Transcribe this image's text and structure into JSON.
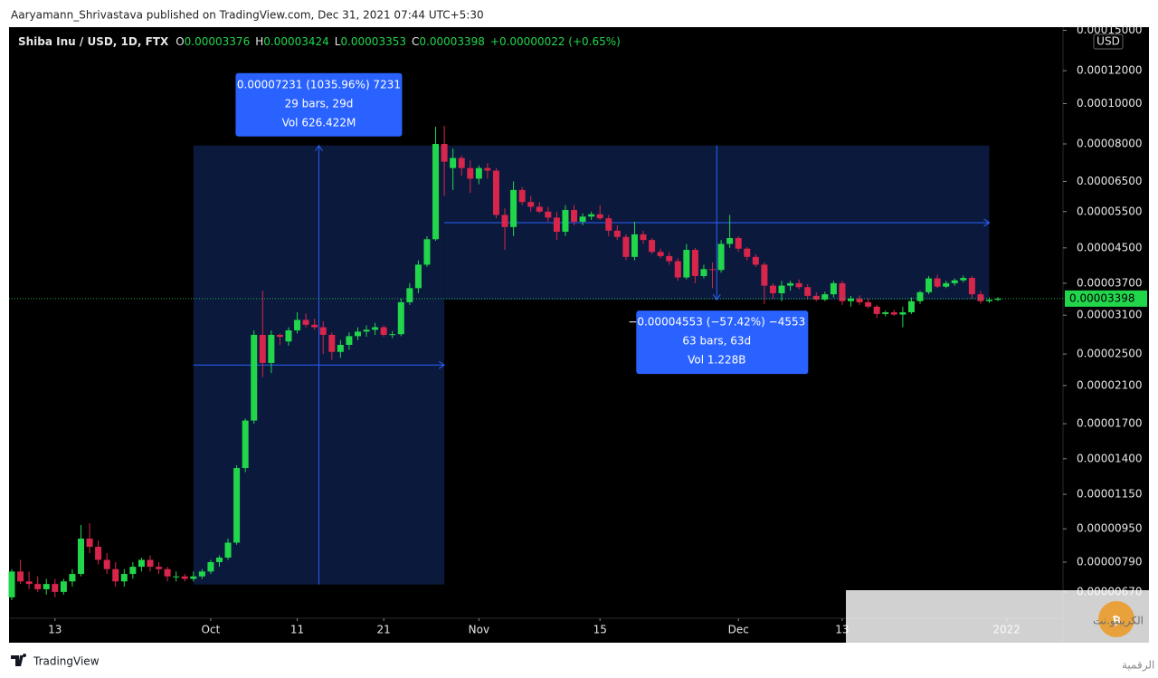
{
  "published": "Aaryamann_Shrivastava published on TradingView.com, Dec 31, 2021 07:44 UTC+5:30",
  "footer": "TradingView",
  "watermark": {
    "title": "الكريبتو.نت",
    "subtitle": "أخبار العملات الرقمية"
  },
  "chart_data": {
    "type": "candlestick",
    "title": "Shiba Inu / USD, 1D, FTX",
    "ohlc_legend": [
      {
        "key": "O",
        "value": "0.00003376"
      },
      {
        "key": "H",
        "value": "0.00003424"
      },
      {
        "key": "L",
        "value": "0.00003353"
      },
      {
        "key": "C",
        "value": "0.00003398"
      }
    ],
    "change_label": "+0.00000022 (+0.65%)",
    "y_unit": "USD",
    "up_color": "#22d64c",
    "down_color": "#d8254c",
    "log_scale": true,
    "grid": false,
    "last_price": {
      "value": 3.398e-05,
      "label": "0.00003398"
    },
    "xlim": [
      "2021-09-08",
      "2022-01-07"
    ],
    "xticks": [
      {
        "value": "2021-09-13",
        "label": "13"
      },
      {
        "value": "2021-10-01",
        "label": "Oct"
      },
      {
        "value": "2021-10-11",
        "label": "11"
      },
      {
        "value": "2021-10-21",
        "label": "21"
      },
      {
        "value": "2021-11-01",
        "label": "Nov"
      },
      {
        "value": "2021-11-15",
        "label": "15"
      },
      {
        "value": "2021-12-01",
        "label": "Dec"
      },
      {
        "value": "2021-12-13",
        "label": "13"
      },
      {
        "value": "2022-01-01",
        "label": "2022"
      }
    ],
    "ylim": [
      5.79e-06,
      0.0001527
    ],
    "yticks": [
      {
        "value": 0.00015,
        "label": "0.00015000"
      },
      {
        "value": 0.00012,
        "label": "0.00012000"
      },
      {
        "value": 0.0001,
        "label": "0.00010000"
      },
      {
        "value": 8e-05,
        "label": "0.00008000"
      },
      {
        "value": 6.5e-05,
        "label": "0.00006500"
      },
      {
        "value": 5.5e-05,
        "label": "0.00005500"
      },
      {
        "value": 4.5e-05,
        "label": "0.00004500"
      },
      {
        "value": 3.7e-05,
        "label": "0.00003700"
      },
      {
        "value": 3.1e-05,
        "label": "0.00003100"
      },
      {
        "value": 2.5e-05,
        "label": "0.00002500"
      },
      {
        "value": 2.1e-05,
        "label": "0.00002100"
      },
      {
        "value": 1.7e-05,
        "label": "0.00001700"
      },
      {
        "value": 1.4e-05,
        "label": "0.00001400"
      },
      {
        "value": 1.15e-05,
        "label": "0.00001150"
      },
      {
        "value": 9.5e-06,
        "label": "0.00000950"
      },
      {
        "value": 7.9e-06,
        "label": "0.00000790"
      },
      {
        "value": 6.7e-06,
        "label": "0.00000670"
      }
    ],
    "measurements": [
      {
        "x": [
          "2021-09-29",
          "2021-10-28"
        ],
        "y": [
          6.98e-06,
          7.929e-05
        ],
        "direction": "up",
        "lines": [
          "0.00007231 (1035.96%) 7231",
          "29 bars, 29d",
          "Vol 626.422M"
        ]
      },
      {
        "x": [
          "2021-10-28",
          "2021-12-30"
        ],
        "y": [
          7.929e-05,
          3.376e-05
        ],
        "direction": "down",
        "lines": [
          "−0.00004553 (−57.42%) −4553",
          "63 bars, 63d",
          "Vol 1.228B"
        ]
      }
    ],
    "x": [
      "2021-09-08",
      "2021-09-09",
      "2021-09-10",
      "2021-09-11",
      "2021-09-12",
      "2021-09-13",
      "2021-09-14",
      "2021-09-15",
      "2021-09-16",
      "2021-09-17",
      "2021-09-18",
      "2021-09-19",
      "2021-09-20",
      "2021-09-21",
      "2021-09-22",
      "2021-09-23",
      "2021-09-24",
      "2021-09-25",
      "2021-09-26",
      "2021-09-27",
      "2021-09-28",
      "2021-09-29",
      "2021-09-30",
      "2021-10-01",
      "2021-10-02",
      "2021-10-03",
      "2021-10-04",
      "2021-10-05",
      "2021-10-06",
      "2021-10-07",
      "2021-10-08",
      "2021-10-09",
      "2021-10-10",
      "2021-10-11",
      "2021-10-12",
      "2021-10-13",
      "2021-10-14",
      "2021-10-15",
      "2021-10-16",
      "2021-10-17",
      "2021-10-18",
      "2021-10-19",
      "2021-10-20",
      "2021-10-21",
      "2021-10-22",
      "2021-10-23",
      "2021-10-24",
      "2021-10-25",
      "2021-10-26",
      "2021-10-27",
      "2021-10-28",
      "2021-10-29",
      "2021-10-30",
      "2021-10-31",
      "2021-11-01",
      "2021-11-02",
      "2021-11-03",
      "2021-11-04",
      "2021-11-05",
      "2021-11-06",
      "2021-11-07",
      "2021-11-08",
      "2021-11-09",
      "2021-11-10",
      "2021-11-11",
      "2021-11-12",
      "2021-11-13",
      "2021-11-14",
      "2021-11-15",
      "2021-11-16",
      "2021-11-17",
      "2021-11-18",
      "2021-11-19",
      "2021-11-20",
      "2021-11-21",
      "2021-11-22",
      "2021-11-23",
      "2021-11-24",
      "2021-11-25",
      "2021-11-26",
      "2021-11-27",
      "2021-11-28",
      "2021-11-29",
      "2021-11-30",
      "2021-12-01",
      "2021-12-02",
      "2021-12-03",
      "2021-12-04",
      "2021-12-05",
      "2021-12-06",
      "2021-12-07",
      "2021-12-08",
      "2021-12-09",
      "2021-12-10",
      "2021-12-11",
      "2021-12-12",
      "2021-12-13",
      "2021-12-14",
      "2021-12-15",
      "2021-12-16",
      "2021-12-17",
      "2021-12-18",
      "2021-12-19",
      "2021-12-20",
      "2021-12-21",
      "2021-12-22",
      "2021-12-23",
      "2021-12-24",
      "2021-12-25",
      "2021-12-26",
      "2021-12-27",
      "2021-12-28",
      "2021-12-29",
      "2021-12-30",
      "2021-12-31"
    ],
    "open": [
      6.5e-06,
      7.5e-06,
      7.1e-06,
      7e-06,
      6.8e-06,
      7e-06,
      6.7e-06,
      7.1e-06,
      7.4e-06,
      9e-06,
      8.6e-06,
      8e-06,
      7.6e-06,
      7.1e-06,
      7.4e-06,
      7.7e-06,
      8e-06,
      7.7e-06,
      7.6e-06,
      7.3e-06,
      7.3e-06,
      7.2e-06,
      7.3e-06,
      7.5e-06,
      7.9e-06,
      8.1e-06,
      8.8e-06,
      1.33e-05,
      1.73e-05,
      2.78e-05,
      2.38e-05,
      2.78e-05,
      2.68e-05,
      2.85e-05,
      3.02e-05,
      2.94e-05,
      2.9e-05,
      2.78e-05,
      2.53e-05,
      2.63e-05,
      2.76e-05,
      2.83e-05,
      2.86e-05,
      2.9e-05,
      2.78e-05,
      2.79e-05,
      3.33e-05,
      3.6e-05,
      4.1e-05,
      4.72e-05,
      8e-05,
      7e-05,
      7.4e-05,
      7e-05,
      6.6e-05,
      7e-05,
      6.9e-05,
      5.4e-05,
      5.05e-05,
      6.2e-05,
      5.8e-05,
      5.65e-05,
      5.5e-05,
      5.32e-05,
      4.92e-05,
      5.55e-05,
      5.2e-05,
      5.35e-05,
      5.42e-05,
      5.3e-05,
      4.95e-05,
      4.78e-05,
      4.28e-05,
      4.85e-05,
      4.7e-05,
      4.4e-05,
      4.3e-05,
      4.18e-05,
      3.82e-05,
      4.45e-05,
      3.85e-05,
      4e-05,
      3.98e-05,
      4.6e-05,
      4.75e-05,
      4.48e-05,
      4.28e-05,
      4.1e-05,
      3.65e-05,
      3.5e-05,
      3.65e-05,
      3.7e-05,
      3.62e-05,
      3.45e-05,
      3.38e-05,
      3.48e-05,
      3.7e-05,
      3.35e-05,
      3.4e-05,
      3.33e-05,
      3.25e-05,
      3.12e-05,
      3.15e-05,
      3.11e-05,
      3.15e-05,
      3.35e-05,
      3.52e-05,
      3.8e-05,
      3.63e-05,
      3.7e-05,
      3.76e-05,
      3.81e-05,
      3.48e-05,
      3.35e-05,
      3.376e-05
    ],
    "high": [
      7.6e-06,
      8e-06,
      7.5e-06,
      7.3e-06,
      7.2e-06,
      7.2e-06,
      7.2e-06,
      7.6e-06,
      9.7e-06,
      9.8e-06,
      8.9e-06,
      8.3e-06,
      7.9e-06,
      7.6e-06,
      7.9e-06,
      8.1e-06,
      8.2e-06,
      7.9e-06,
      7.7e-06,
      7.5e-06,
      7.4e-06,
      7.5e-06,
      7.6e-06,
      8e-06,
      8.2e-06,
      9e-06,
      1.35e-05,
      1.75e-05,
      2.85e-05,
      3.55e-05,
      2.85e-05,
      2.8e-05,
      2.9e-05,
      3.15e-05,
      3.13e-05,
      3.04e-05,
      3e-05,
      2.82e-05,
      2.7e-05,
      2.82e-05,
      2.9e-05,
      2.93e-05,
      2.97e-05,
      2.93e-05,
      2.84e-05,
      3.4e-05,
      3.7e-05,
      4.2e-05,
      4.8e-05,
      8.8e-05,
      8.85e-05,
      7.8e-05,
      7.5e-05,
      7.3e-05,
      7.1e-05,
      7.2e-05,
      7e-05,
      5.6e-05,
      6.5e-05,
      6.3e-05,
      6e-05,
      5.8e-05,
      5.65e-05,
      5.5e-05,
      5.7e-05,
      5.7e-05,
      5.45e-05,
      5.5e-05,
      5.7e-05,
      5.4e-05,
      5.1e-05,
      4.85e-05,
      5.2e-05,
      4.95e-05,
      4.75e-05,
      4.48e-05,
      4.4e-05,
      4.25e-05,
      4.6e-05,
      4.5e-05,
      4.1e-05,
      4.15e-05,
      4.7e-05,
      5.4e-05,
      4.8e-05,
      4.52e-05,
      4.35e-05,
      4.15e-05,
      3.7e-05,
      3.75e-05,
      3.75e-05,
      3.78e-05,
      3.68e-05,
      3.52e-05,
      3.53e-05,
      3.75e-05,
      3.75e-05,
      3.45e-05,
      3.46e-05,
      3.4e-05,
      3.28e-05,
      3.18e-05,
      3.19e-05,
      3.25e-05,
      3.42e-05,
      3.55e-05,
      3.85e-05,
      3.88e-05,
      3.75e-05,
      3.8e-05,
      3.86e-05,
      3.85e-05,
      3.55e-05,
      3.42e-05,
      3.424e-05
    ],
    "low": [
      6.4e-06,
      7e-06,
      6.8e-06,
      6.7e-06,
      6.6e-06,
      6.5e-06,
      6.6e-06,
      6.9e-06,
      7.3e-06,
      8.3e-06,
      7.8e-06,
      7.4e-06,
      6.9e-06,
      6.9e-06,
      7.2e-06,
      7.5e-06,
      7.5e-06,
      7.4e-06,
      7.1e-06,
      7.1e-06,
      7.1e-06,
      7.1e-06,
      7.2e-06,
      7.4e-06,
      7.7e-06,
      8e-06,
      8.7e-06,
      1.3e-05,
      1.7e-05,
      2.2e-05,
      2.25e-05,
      2.63e-05,
      2.62e-05,
      2.8e-05,
      2.9e-05,
      2.86e-05,
      2.5e-05,
      2.42e-05,
      2.45e-05,
      2.56e-05,
      2.7e-05,
      2.75e-05,
      2.78e-05,
      2.75e-05,
      2.73e-05,
      2.76e-05,
      3.28e-05,
      3.5e-05,
      4.05e-05,
      4.68e-05,
      6e-05,
      6.2e-05,
      6.7e-05,
      6.1e-05,
      6.4e-05,
      6.6e-05,
      5.3e-05,
      4.45e-05,
      4.8e-05,
      5.7e-05,
      5.5e-05,
      5.45e-05,
      5.2e-05,
      4.7e-05,
      4.8e-05,
      5.1e-05,
      5.1e-05,
      5.25e-05,
      5.25e-05,
      4.8e-05,
      4.7e-05,
      4.2e-05,
      4.2e-05,
      4.6e-05,
      4.35e-05,
      4.25e-05,
      4.1e-05,
      3.75e-05,
      3.78e-05,
      3.7e-05,
      3.8e-05,
      3.6e-05,
      3.92e-05,
      4.5e-05,
      4.4e-05,
      4.2e-05,
      4.05e-05,
      3.3e-05,
      3.4e-05,
      3.35e-05,
      3.55e-05,
      3.58e-05,
      3.38e-05,
      3.35e-05,
      3.35e-05,
      3.42e-05,
      3.28e-05,
      3.25e-05,
      3.28e-05,
      3.22e-05,
      3.05e-05,
      3.08e-05,
      3.09e-05,
      2.9e-05,
      3.12e-05,
      3.3e-05,
      3.48e-05,
      3.6e-05,
      3.6e-05,
      3.65e-05,
      3.72e-05,
      3.4e-05,
      3.3e-05,
      3.32e-05,
      3.353e-05
    ],
    "close": [
      7.5e-06,
      7.1e-06,
      7e-06,
      6.8e-06,
      7e-06,
      6.7e-06,
      7.1e-06,
      7.4e-06,
      9e-06,
      8.6e-06,
      8e-06,
      7.6e-06,
      7.1e-06,
      7.4e-06,
      7.7e-06,
      8e-06,
      7.7e-06,
      7.6e-06,
      7.3e-06,
      7.3e-06,
      7.2e-06,
      7.3e-06,
      7.5e-06,
      7.9e-06,
      8.1e-06,
      8.8e-06,
      1.33e-05,
      1.73e-05,
      2.78e-05,
      2.38e-05,
      2.78e-05,
      2.75e-05,
      2.85e-05,
      3.02e-05,
      2.94e-05,
      2.9e-05,
      2.78e-05,
      2.53e-05,
      2.63e-05,
      2.76e-05,
      2.83e-05,
      2.86e-05,
      2.9e-05,
      2.78e-05,
      2.79e-05,
      3.33e-05,
      3.6e-05,
      4.1e-05,
      4.72e-05,
      8e-05,
      7.25e-05,
      7.4e-05,
      7e-05,
      6.6e-05,
      7e-05,
      6.9e-05,
      5.4e-05,
      5.05e-05,
      6.2e-05,
      5.8e-05,
      5.65e-05,
      5.5e-05,
      5.32e-05,
      4.92e-05,
      5.55e-05,
      5.2e-05,
      5.35e-05,
      5.42e-05,
      5.3e-05,
      4.95e-05,
      4.78e-05,
      4.28e-05,
      4.85e-05,
      4.7e-05,
      4.4e-05,
      4.3e-05,
      4.18e-05,
      3.82e-05,
      4.45e-05,
      3.85e-05,
      4e-05,
      3.98e-05,
      4.6e-05,
      4.75e-05,
      4.48e-05,
      4.28e-05,
      4.1e-05,
      3.65e-05,
      3.5e-05,
      3.65e-05,
      3.7e-05,
      3.62e-05,
      3.45e-05,
      3.38e-05,
      3.48e-05,
      3.7e-05,
      3.35e-05,
      3.4e-05,
      3.33e-05,
      3.25e-05,
      3.12e-05,
      3.15e-05,
      3.11e-05,
      3.15e-05,
      3.35e-05,
      3.52e-05,
      3.8e-05,
      3.63e-05,
      3.7e-05,
      3.76e-05,
      3.81e-05,
      3.48e-05,
      3.35e-05,
      3.376e-05,
      3.398e-05
    ]
  }
}
